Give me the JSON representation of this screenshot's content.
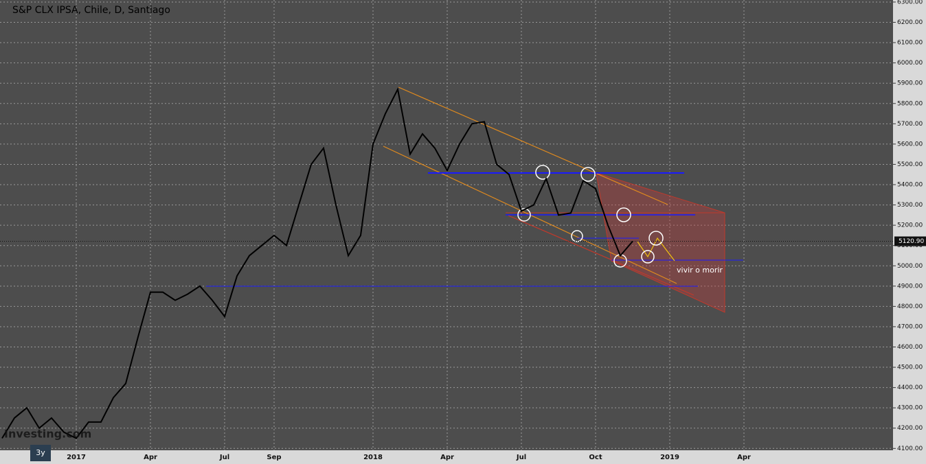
{
  "chart_data": {
    "type": "line",
    "title": "S&P CLX IPSA, Chile, D, Santiago",
    "annotation": "vivir o morir",
    "range_button": "3y",
    "watermark": "Investing.com",
    "color": "#000000",
    "grid": true,
    "categories": [
      null,
      null,
      null,
      null,
      null,
      null,
      "2017",
      null,
      null,
      null,
      null,
      null,
      "Apr",
      null,
      null,
      null,
      null,
      null,
      "Jul",
      null,
      null,
      null,
      "Sep",
      null,
      null,
      null,
      null,
      null,
      null,
      null,
      "2018",
      null,
      null,
      null,
      null,
      null,
      "Apr",
      null,
      null,
      null,
      null,
      null,
      "Jul",
      null,
      null,
      null,
      null,
      null,
      "Oct",
      null,
      null,
      null,
      null,
      null,
      "2019",
      null,
      null,
      null,
      null,
      null,
      "Apr"
    ],
    "values": [
      4150,
      4250,
      4300,
      4200,
      4250,
      4180,
      4150,
      4230,
      4230,
      4350,
      4420,
      4650,
      4870,
      4870,
      4830,
      4860,
      4900,
      4830,
      4750,
      4950,
      5050,
      5100,
      5150,
      5100,
      5300,
      5500,
      5580,
      5300,
      5050,
      5150,
      5600,
      5750,
      5870,
      5550,
      5650,
      5580,
      5470,
      5600,
      5700,
      5710,
      5500,
      5450,
      5270,
      5300,
      5430,
      5250,
      5260,
      5420,
      5380,
      5200,
      5050,
      5121,
      null,
      null,
      null,
      null,
      null,
      null,
      null,
      null,
      null
    ],
    "last_value": {
      "value": 5120.9,
      "label": "5120.90"
    },
    "ylim": [
      4030,
      6310
    ],
    "yticks": [
      {
        "value": 4100,
        "label": "4100.00"
      },
      {
        "value": 4200,
        "label": "4200.00"
      },
      {
        "value": 4300,
        "label": "4300.00"
      },
      {
        "value": 4400,
        "label": "4400.00"
      },
      {
        "value": 4500,
        "label": "4500.00"
      },
      {
        "value": 4600,
        "label": "4600.00"
      },
      {
        "value": 4700,
        "label": "4700.00"
      },
      {
        "value": 4800,
        "label": "4800.00"
      },
      {
        "value": 4900,
        "label": "4900.00"
      },
      {
        "value": 5000,
        "label": "5000.00"
      },
      {
        "value": 5100,
        "label": "5100.00"
      },
      {
        "value": 5200,
        "label": "5200.00"
      },
      {
        "value": 5300,
        "label": "5300.00"
      },
      {
        "value": 5400,
        "label": "5400.00"
      },
      {
        "value": 5500,
        "label": "5500.00"
      },
      {
        "value": 5600,
        "label": "5600.00"
      },
      {
        "value": 5700,
        "label": "5700.00"
      },
      {
        "value": 5800,
        "label": "5800.00"
      },
      {
        "value": 5900,
        "label": "5900.00"
      },
      {
        "value": 6000,
        "label": "6000.00"
      },
      {
        "value": 6100,
        "label": "6100.00"
      },
      {
        "value": 6200,
        "label": "6200.00"
      },
      {
        "value": 6300,
        "label": "6300.00"
      }
    ]
  }
}
